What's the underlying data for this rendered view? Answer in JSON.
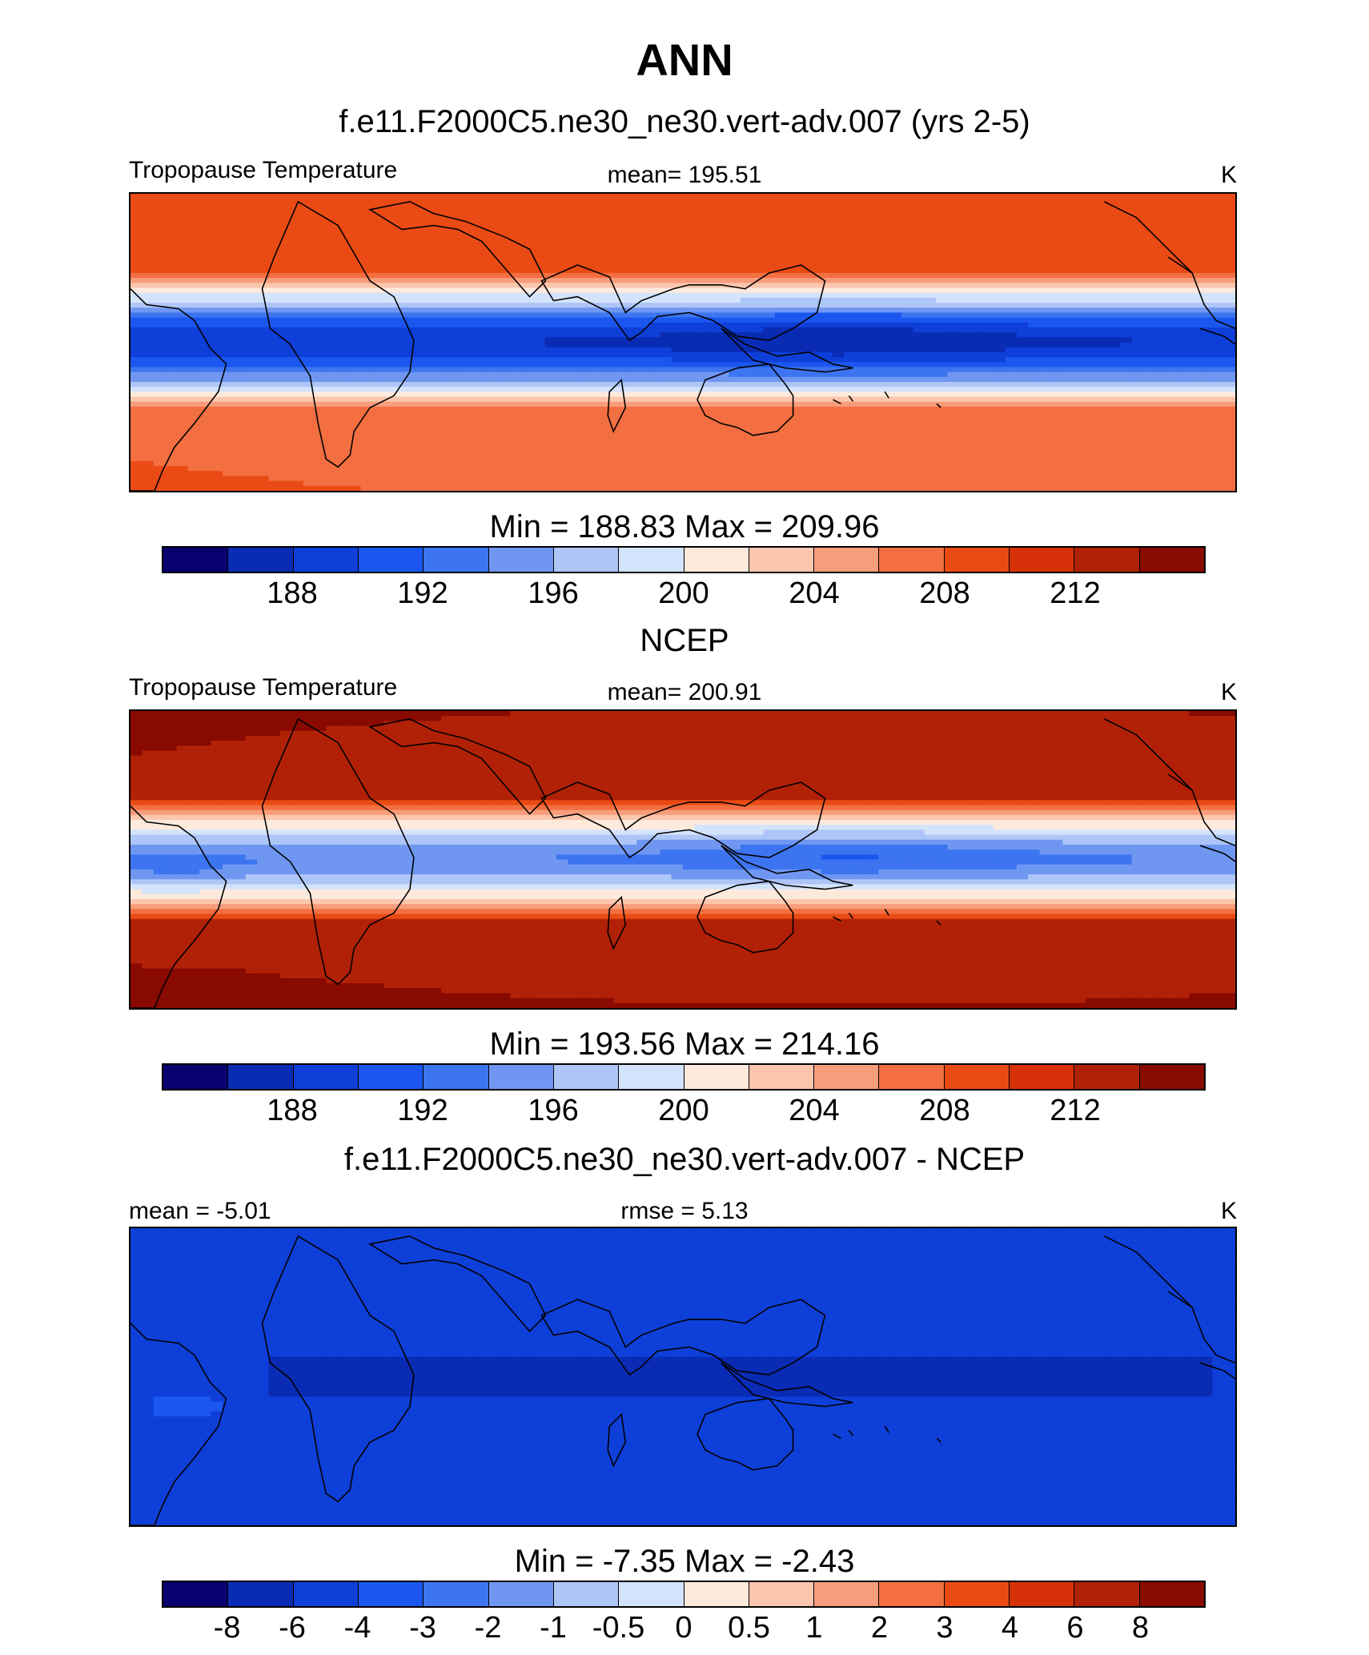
{
  "main_title": "ANN",
  "colors": {
    "scale": [
      "#08006e",
      "#0a2bb3",
      "#0e3fd8",
      "#1b57ef",
      "#3d75f0",
      "#6f97f2",
      "#aec6f7",
      "#d3e3fb",
      "#fdeadd",
      "#fcc6ad",
      "#f79d7c",
      "#f36f41",
      "#ea4b14",
      "#d63108",
      "#b12107",
      "#880a00"
    ]
  },
  "panels": [
    {
      "title": "f.e11.F2000C5.ne30_ne30.vert-adv.007 (yrs 2-5)",
      "left_label": "Tropopause Temperature",
      "center_label": "mean= 195.51",
      "units": "K",
      "field": "model",
      "minmax": "Min = 188.83 Max = 209.96",
      "ticks": [
        "188",
        "192",
        "196",
        "200",
        "204",
        "208",
        "212"
      ],
      "tick_segments": [
        2,
        4,
        6,
        8,
        10,
        12,
        14
      ]
    },
    {
      "title": "NCEP",
      "left_label": "Tropopause Temperature",
      "center_label": "mean= 200.91",
      "units": "K",
      "field": "obs",
      "minmax": "Min = 193.56 Max = 214.16",
      "ticks": [
        "188",
        "192",
        "196",
        "200",
        "204",
        "208",
        "212"
      ],
      "tick_segments": [
        2,
        4,
        6,
        8,
        10,
        12,
        14
      ]
    },
    {
      "title": "f.e11.F2000C5.ne30_ne30.vert-adv.007 - NCEP",
      "left_label": "mean =  -5.01",
      "center_label": "rmse =   5.13",
      "units": "K",
      "field": "diff",
      "minmax": "Min =  -7.35 Max =  -2.43",
      "ticks": [
        "-8",
        "-6",
        "-4",
        "-3",
        "-2",
        "-1",
        "-0.5",
        "0",
        "0.5",
        "1",
        "2",
        "3",
        "4",
        "6",
        "8"
      ],
      "tick_segments": [
        1,
        2,
        3,
        4,
        5,
        6,
        7,
        8,
        9,
        10,
        11,
        12,
        13,
        14,
        15
      ]
    }
  ]
}
